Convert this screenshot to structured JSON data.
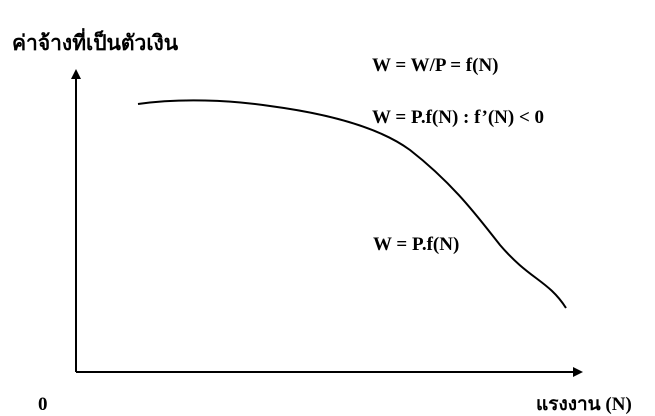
{
  "y_axis_label": "ค่าจ้างที่เป็นตัวเงิน",
  "x_axis_label": "แรงงาน (N)",
  "origin_label": "0",
  "equation_top": "W = W/P = f(N)",
  "equation_mid": "W = P.f(N) : f’(N) < 0",
  "curve_label": "W = P.f(N)",
  "colors": {
    "ink": "#000000",
    "background": "#ffffff"
  }
}
